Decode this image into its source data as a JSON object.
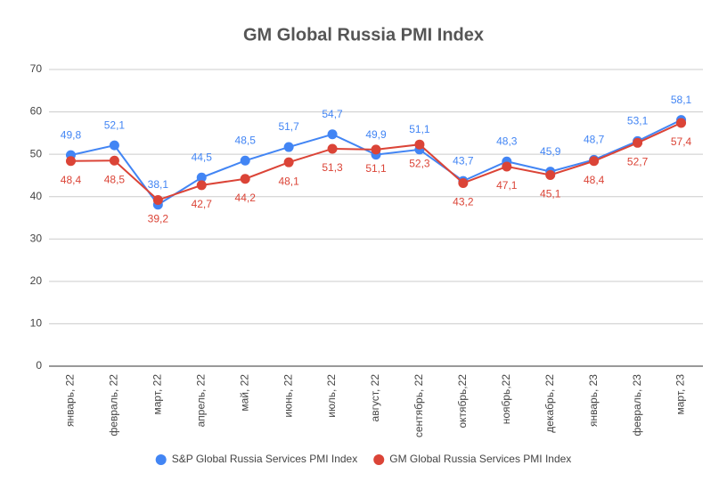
{
  "chart_data": {
    "type": "line",
    "title": "GM Global Russia PMI Index",
    "categories": [
      "январь, 22",
      "февраль, 22",
      "март, 22",
      "апрель, 22",
      "май, 22",
      "июнь, 22",
      "июль, 22",
      "август, 22",
      "сентябрь, 22",
      "октябрь,22",
      "ноябрь,22",
      "декабрь, 22",
      "январь, 23",
      "февраль, 23",
      "март, 23"
    ],
    "series": [
      {
        "name": "S&P Global Russia Services PMI Index",
        "color": "#4285f4",
        "values": [
          49.8,
          52.1,
          38.1,
          44.5,
          48.5,
          51.7,
          54.7,
          49.9,
          51.1,
          43.7,
          48.3,
          45.9,
          48.7,
          53.1,
          58.1
        ],
        "value_labels": [
          "49,8",
          "52,1",
          "38,1",
          "44,5",
          "48,5",
          "51,7",
          "54,7",
          "49,9",
          "51,1",
          "43,7",
          "48,3",
          "45,9",
          "48,7",
          "53,1",
          "58,1"
        ]
      },
      {
        "name": "GM Global Russia Services PMI Index",
        "color": "#db4437",
        "values": [
          48.4,
          48.5,
          39.2,
          42.7,
          44.2,
          48.1,
          51.3,
          51.1,
          52.3,
          43.2,
          47.1,
          45.1,
          48.4,
          52.7,
          57.4
        ],
        "value_labels": [
          "48,4",
          "48,5",
          "39,2",
          "42,7",
          "44,2",
          "48,1",
          "51,3",
          "51,1",
          "52,3",
          "43,2",
          "47,1",
          "45,1",
          "48,4",
          "52,7",
          "57,4"
        ]
      }
    ],
    "ylim": [
      0,
      70
    ],
    "yticks": [
      0,
      10,
      20,
      30,
      40,
      50,
      60,
      70
    ],
    "grid": true,
    "legend": "bottom"
  }
}
